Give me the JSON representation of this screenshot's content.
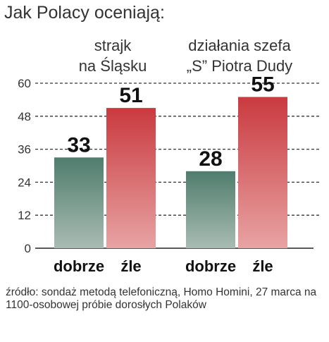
{
  "title": "Jak Polacy oceniają:",
  "source": "źródło: sondaż metodą telefoniczną, Homo Homini, 27 marca na 1100-osobowej próbie dorosłych Polaków",
  "chart_data": {
    "type": "bar",
    "title": "Jak Polacy oceniają:",
    "ylim": [
      0,
      60
    ],
    "yticks": [
      0,
      12,
      24,
      36,
      48,
      60
    ],
    "grid": true,
    "groups": [
      {
        "title_lines": [
          "strajk",
          "na Śląsku"
        ],
        "bars": [
          {
            "label": "dobrze",
            "value": 33,
            "color": "#4f7d6d"
          },
          {
            "label": "źle",
            "value": 51,
            "color": "#c93a3f"
          }
        ]
      },
      {
        "title_lines": [
          "działania szefa",
          "„S” Piotra Dudy"
        ],
        "bars": [
          {
            "label": "dobrze",
            "value": 28,
            "color": "#4f7d6d"
          },
          {
            "label": "źle",
            "value": 55,
            "color": "#c93a3f"
          }
        ]
      }
    ]
  }
}
